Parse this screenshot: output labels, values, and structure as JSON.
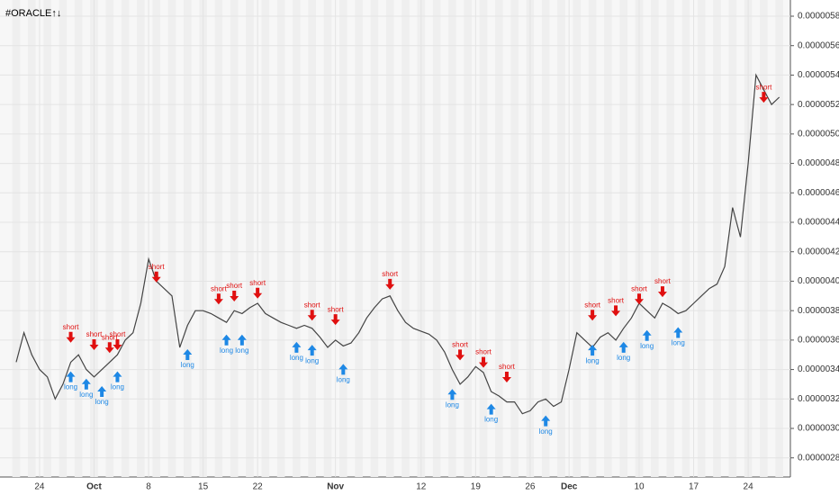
{
  "chart_data": {
    "type": "line",
    "title": "#ORACLE↑↓",
    "categories": [
      null,
      null,
      null,
      "24",
      null,
      null,
      null,
      null,
      null,
      null,
      "Oct",
      null,
      null,
      null,
      null,
      null,
      null,
      "8",
      null,
      null,
      null,
      null,
      null,
      null,
      "15",
      null,
      null,
      null,
      null,
      null,
      null,
      "22",
      null,
      null,
      null,
      null,
      null,
      null,
      null,
      null,
      null,
      "Nov",
      null,
      null,
      null,
      null,
      null,
      null,
      null,
      null,
      null,
      null,
      "12",
      null,
      null,
      null,
      null,
      null,
      null,
      "19",
      null,
      null,
      null,
      null,
      null,
      null,
      "26",
      null,
      null,
      null,
      null,
      "Dec",
      null,
      null,
      null,
      null,
      null,
      null,
      null,
      null,
      "10",
      null,
      null,
      null,
      null,
      null,
      null,
      "17",
      null,
      null,
      null,
      null,
      null,
      null,
      "24",
      null,
      null,
      null,
      null
    ],
    "series": [
      {
        "color": "#444444",
        "values": [
          3.45e-06,
          3.65e-06,
          3.5e-06,
          3.4e-06,
          3.35e-06,
          3.2e-06,
          3.3e-06,
          3.45e-06,
          3.5e-06,
          3.4e-06,
          3.35e-06,
          3.4e-06,
          3.45e-06,
          3.5e-06,
          3.6e-06,
          3.65e-06,
          3.85e-06,
          4.15e-06,
          4e-06,
          3.95e-06,
          3.9e-06,
          3.55e-06,
          3.7e-06,
          3.8e-06,
          3.8e-06,
          3.78e-06,
          3.75e-06,
          3.72e-06,
          3.8e-06,
          3.78e-06,
          3.82e-06,
          3.85e-06,
          3.78e-06,
          3.75e-06,
          3.72e-06,
          3.7e-06,
          3.68e-06,
          3.7e-06,
          3.68e-06,
          3.62e-06,
          3.55e-06,
          3.6e-06,
          3.56e-06,
          3.58e-06,
          3.65e-06,
          3.75e-06,
          3.82e-06,
          3.88e-06,
          3.9e-06,
          3.8e-06,
          3.72e-06,
          3.68e-06,
          3.66e-06,
          3.64e-06,
          3.6e-06,
          3.52e-06,
          3.4e-06,
          3.3e-06,
          3.35e-06,
          3.42e-06,
          3.38e-06,
          3.25e-06,
          3.22e-06,
          3.18e-06,
          3.18e-06,
          3.1e-06,
          3.12e-06,
          3.18e-06,
          3.2e-06,
          3.15e-06,
          3.18e-06,
          3.4e-06,
          3.65e-06,
          3.6e-06,
          3.55e-06,
          3.62e-06,
          3.65e-06,
          3.6e-06,
          3.68e-06,
          3.75e-06,
          3.85e-06,
          3.8e-06,
          3.75e-06,
          3.85e-06,
          3.82e-06,
          3.78e-06,
          3.8e-06,
          3.85e-06,
          3.9e-06,
          3.95e-06,
          3.98e-06,
          4.1e-06,
          4.5e-06,
          4.3e-06,
          4.8e-06,
          5.4e-06,
          5.3e-06,
          5.2e-06,
          5.25e-06
        ]
      }
    ],
    "ylim": [
      2.67e-06,
      5.91e-06
    ],
    "yticks": [
      {
        "value": 2.8e-06,
        "label": "0.00000280"
      },
      {
        "value": 3e-06,
        "label": "0.00000300"
      },
      {
        "value": 3.2e-06,
        "label": "0.00000320"
      },
      {
        "value": 3.4e-06,
        "label": "0.00000340"
      },
      {
        "value": 3.6e-06,
        "label": "0.00000360"
      },
      {
        "value": 3.8e-06,
        "label": "0.00000380"
      },
      {
        "value": 4e-06,
        "label": "0.00000400"
      },
      {
        "value": 4.2e-06,
        "label": "0.00000420"
      },
      {
        "value": 4.4e-06,
        "label": "0.00000440"
      },
      {
        "value": 4.6e-06,
        "label": "0.00000460"
      },
      {
        "value": 4.8e-06,
        "label": "0.00000480"
      },
      {
        "value": 5e-06,
        "label": "0.00000500"
      },
      {
        "value": 5.2e-06,
        "label": "0.00000520"
      },
      {
        "value": 5.4e-06,
        "label": "0.00000540"
      },
      {
        "value": 5.6e-06,
        "label": "0.00000560"
      },
      {
        "value": 5.8e-06,
        "label": "0.00000580"
      }
    ],
    "grid": true,
    "annotations": [
      {
        "text": "short",
        "at": 7,
        "value": 3.57e-06
      },
      {
        "text": "short",
        "at": 10,
        "value": 3.52e-06
      },
      {
        "text": "short",
        "at": 12,
        "value": 3.5e-06
      },
      {
        "text": "short",
        "at": 13,
        "value": 3.52e-06
      },
      {
        "text": "short",
        "at": 18,
        "value": 3.98e-06
      },
      {
        "text": "short",
        "at": 26,
        "value": 3.83e-06
      },
      {
        "text": "short",
        "at": 28,
        "value": 3.85e-06
      },
      {
        "text": "short",
        "at": 31,
        "value": 3.87e-06
      },
      {
        "text": "short",
        "at": 38,
        "value": 3.72e-06
      },
      {
        "text": "short",
        "at": 41,
        "value": 3.69e-06
      },
      {
        "text": "short",
        "at": 48,
        "value": 3.93e-06
      },
      {
        "text": "short",
        "at": 57,
        "value": 3.45e-06
      },
      {
        "text": "short",
        "at": 60,
        "value": 3.4e-06
      },
      {
        "text": "short",
        "at": 63,
        "value": 3.3e-06
      },
      {
        "text": "short",
        "at": 74,
        "value": 3.72e-06
      },
      {
        "text": "short",
        "at": 77,
        "value": 3.75e-06
      },
      {
        "text": "short",
        "at": 80,
        "value": 3.83e-06
      },
      {
        "text": "short",
        "at": 83,
        "value": 3.88e-06
      },
      {
        "text": "short",
        "at": 96,
        "value": 5.2e-06
      },
      {
        "text": "long",
        "at": 7,
        "value": 3.4e-06
      },
      {
        "text": "long",
        "at": 9,
        "value": 3.35e-06
      },
      {
        "text": "long",
        "at": 11,
        "value": 3.3e-06
      },
      {
        "text": "long",
        "at": 13,
        "value": 3.4e-06
      },
      {
        "text": "long",
        "at": 22,
        "value": 3.55e-06
      },
      {
        "text": "long",
        "at": 27,
        "value": 3.65e-06
      },
      {
        "text": "long",
        "at": 29,
        "value": 3.65e-06
      },
      {
        "text": "long",
        "at": 36,
        "value": 3.6e-06
      },
      {
        "text": "long",
        "at": 38,
        "value": 3.58e-06
      },
      {
        "text": "long",
        "at": 42,
        "value": 3.45e-06
      },
      {
        "text": "long",
        "at": 56,
        "value": 3.28e-06
      },
      {
        "text": "long",
        "at": 61,
        "value": 3.18e-06
      },
      {
        "text": "long",
        "at": 68,
        "value": 3.1e-06
      },
      {
        "text": "long",
        "at": 74,
        "value": 3.58e-06
      },
      {
        "text": "long",
        "at": 78,
        "value": 3.6e-06
      },
      {
        "text": "long",
        "at": 81,
        "value": 3.68e-06
      },
      {
        "text": "long",
        "at": 85,
        "value": 3.7e-06
      }
    ]
  }
}
